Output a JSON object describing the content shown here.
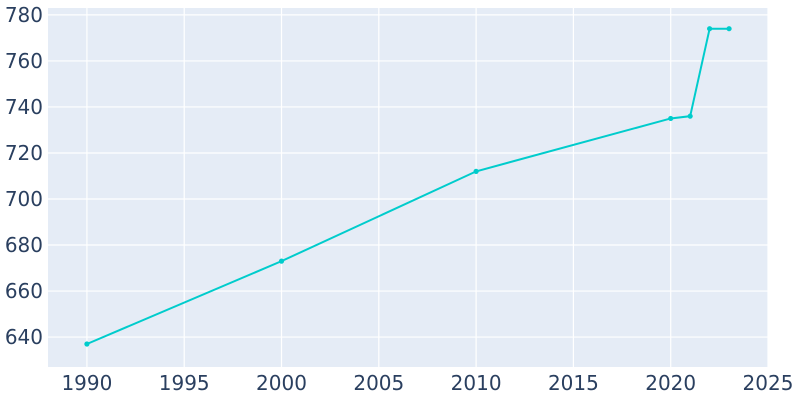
{
  "chart_data": {
    "type": "line",
    "title": "",
    "xlabel": "",
    "ylabel": "",
    "x": [
      1990,
      2000,
      2010,
      2020,
      2021,
      2022,
      2023
    ],
    "series": [
      {
        "values": [
          637,
          673,
          712,
          735,
          736,
          774,
          774
        ]
      }
    ],
    "xlim": [
      1988,
      2025
    ],
    "ylim": [
      627,
      783
    ],
    "xticks": [
      1990,
      1995,
      2000,
      2005,
      2010,
      2015,
      2020,
      2025
    ],
    "yticks": [
      640,
      660,
      680,
      700,
      720,
      740,
      760,
      780
    ],
    "grid": true,
    "legend": "none",
    "colors": {
      "plot_bg": "#e5ecf6",
      "grid": "#ffffff",
      "line": "#00cccc",
      "tick_text": "#2a3f5f"
    }
  }
}
